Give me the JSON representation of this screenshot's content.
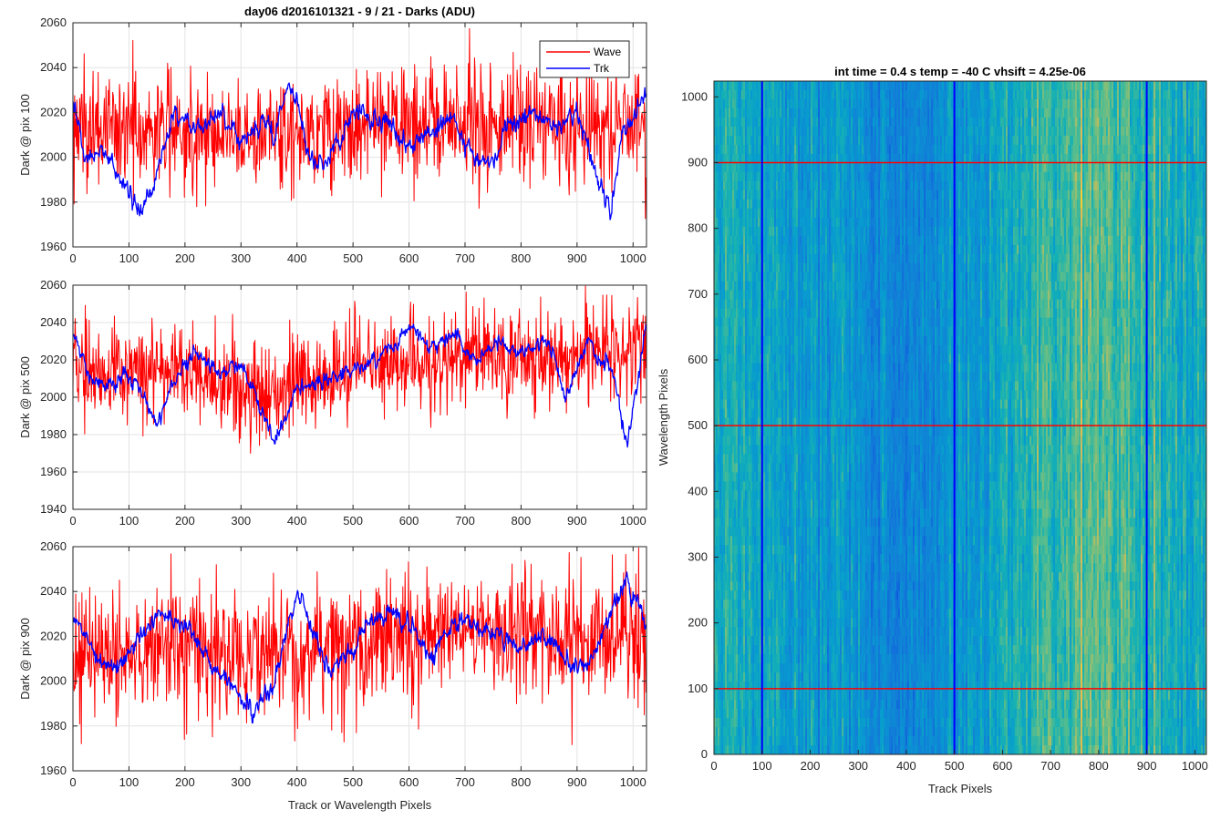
{
  "figure": {
    "title": "day06 d2016101321 - 9 / 21 - Darks (ADU)",
    "colors": {
      "wave": "#ff0000",
      "trk": "#0000ff",
      "grid": "#e3e3e3",
      "axis": "#262626"
    }
  },
  "chart_data": [
    {
      "type": "line",
      "id": "dark-pix-100",
      "title": "day06 d2016101321 - 9 / 21 - Darks (ADU)",
      "xlabel": "",
      "ylabel": "Dark @ pix 100",
      "xlim": [
        0,
        1024
      ],
      "ylim": [
        1960,
        2060
      ],
      "xticks": [
        0,
        100,
        200,
        300,
        400,
        500,
        600,
        700,
        800,
        900,
        1000
      ],
      "yticks": [
        1960,
        1980,
        2000,
        2020,
        2040,
        2060
      ],
      "grid": true,
      "legend": {
        "position": "top-right",
        "entries": [
          "Wave",
          "Trk"
        ]
      },
      "series": [
        {
          "name": "Wave",
          "color": "#ff0000",
          "mean": 2012,
          "noise": 13,
          "min": 1962,
          "max": 2057,
          "trend": [
            [
              0,
              2012
            ],
            [
              100,
              2013
            ],
            [
              200,
              2012
            ],
            [
              300,
              2010
            ],
            [
              400,
              2012
            ],
            [
              500,
              2013
            ],
            [
              600,
              2015
            ],
            [
              700,
              2016
            ],
            [
              800,
              2015
            ],
            [
              900,
              2015
            ],
            [
              1024,
              2015
            ]
          ]
        },
        {
          "name": "Trk",
          "color": "#0000ff",
          "mean": 2008,
          "noise": 4,
          "min": 1967,
          "max": 2041,
          "trend": [
            [
              0,
              2025
            ],
            [
              20,
              2000
            ],
            [
              60,
              2002
            ],
            [
              100,
              1983
            ],
            [
              120,
              1975
            ],
            [
              140,
              1985
            ],
            [
              180,
              2020
            ],
            [
              220,
              2012
            ],
            [
              260,
              2022
            ],
            [
              300,
              2008
            ],
            [
              340,
              2015
            ],
            [
              360,
              2010
            ],
            [
              380,
              2030
            ],
            [
              400,
              2027
            ],
            [
              420,
              2000
            ],
            [
              450,
              1995
            ],
            [
              500,
              2020
            ],
            [
              560,
              2015
            ],
            [
              600,
              2005
            ],
            [
              640,
              2012
            ],
            [
              680,
              2018
            ],
            [
              700,
              2005
            ],
            [
              720,
              2000
            ],
            [
              750,
              1998
            ],
            [
              780,
              2015
            ],
            [
              820,
              2020
            ],
            [
              860,
              2015
            ],
            [
              900,
              2020
            ],
            [
              930,
              1995
            ],
            [
              960,
              1975
            ],
            [
              980,
              2010
            ],
            [
              1000,
              2018
            ],
            [
              1024,
              2028
            ]
          ]
        }
      ]
    },
    {
      "type": "line",
      "id": "dark-pix-500",
      "title": "",
      "xlabel": "",
      "ylabel": "Dark @ pix 500",
      "xlim": [
        0,
        1024
      ],
      "ylim": [
        1940,
        2060
      ],
      "xticks": [
        0,
        100,
        200,
        300,
        400,
        500,
        600,
        700,
        800,
        900,
        1000
      ],
      "yticks": [
        1940,
        1960,
        1980,
        2000,
        2020,
        2040,
        2060
      ],
      "grid": true,
      "series": [
        {
          "name": "Wave",
          "color": "#ff0000",
          "mean": 2015,
          "noise": 13,
          "min": 1953,
          "max": 2053,
          "trend": [
            [
              0,
              2015
            ],
            [
              100,
              2012
            ],
            [
              200,
              2014
            ],
            [
              300,
              2005
            ],
            [
              350,
              2000
            ],
            [
              400,
              2008
            ],
            [
              500,
              2015
            ],
            [
              600,
              2020
            ],
            [
              700,
              2022
            ],
            [
              800,
              2024
            ],
            [
              900,
              2022
            ],
            [
              1024,
              2026
            ]
          ]
        },
        {
          "name": "Trk",
          "color": "#0000ff",
          "mean": 2012,
          "noise": 4,
          "min": 1971,
          "max": 2047,
          "trend": [
            [
              0,
              2035
            ],
            [
              30,
              2010
            ],
            [
              60,
              2004
            ],
            [
              100,
              2012
            ],
            [
              130,
              2000
            ],
            [
              150,
              1985
            ],
            [
              180,
              2010
            ],
            [
              220,
              2025
            ],
            [
              260,
              2012
            ],
            [
              300,
              2018
            ],
            [
              340,
              1990
            ],
            [
              360,
              1975
            ],
            [
              400,
              2005
            ],
            [
              450,
              2010
            ],
            [
              500,
              2015
            ],
            [
              560,
              2025
            ],
            [
              600,
              2038
            ],
            [
              640,
              2028
            ],
            [
              680,
              2035
            ],
            [
              720,
              2020
            ],
            [
              760,
              2030
            ],
            [
              800,
              2025
            ],
            [
              850,
              2030
            ],
            [
              880,
              2000
            ],
            [
              920,
              2030
            ],
            [
              960,
              2015
            ],
            [
              990,
              1975
            ],
            [
              1024,
              2040
            ]
          ]
        }
      ]
    },
    {
      "type": "line",
      "id": "dark-pix-900",
      "title": "",
      "xlabel": "Track or Wavelength Pixels",
      "ylabel": "Dark @ pix 900",
      "xlim": [
        0,
        1024
      ],
      "ylim": [
        1960,
        2060
      ],
      "xticks": [
        0,
        100,
        200,
        300,
        400,
        500,
        600,
        700,
        800,
        900,
        1000
      ],
      "yticks": [
        1960,
        1980,
        2000,
        2020,
        2040,
        2060
      ],
      "grid": true,
      "series": [
        {
          "name": "Wave",
          "color": "#ff0000",
          "mean": 2015,
          "noise": 14,
          "min": 1963,
          "max": 2051,
          "trend": [
            [
              0,
              2010
            ],
            [
              100,
              2012
            ],
            [
              200,
              2015
            ],
            [
              300,
              2010
            ],
            [
              400,
              2012
            ],
            [
              500,
              2018
            ],
            [
              600,
              2022
            ],
            [
              700,
              2022
            ],
            [
              800,
              2022
            ],
            [
              900,
              2020
            ],
            [
              1024,
              2022
            ]
          ]
        },
        {
          "name": "Trk",
          "color": "#0000ff",
          "mean": 2018,
          "noise": 4,
          "min": 1977,
          "max": 2060,
          "trend": [
            [
              0,
              2030
            ],
            [
              40,
              2010
            ],
            [
              80,
              2005
            ],
            [
              120,
              2020
            ],
            [
              160,
              2030
            ],
            [
              200,
              2025
            ],
            [
              240,
              2010
            ],
            [
              280,
              2000
            ],
            [
              320,
              1985
            ],
            [
              360,
              2000
            ],
            [
              400,
              2040
            ],
            [
              430,
              2020
            ],
            [
              460,
              2005
            ],
            [
              500,
              2015
            ],
            [
              520,
              2025
            ],
            [
              560,
              2030
            ],
            [
              600,
              2025
            ],
            [
              640,
              2010
            ],
            [
              680,
              2028
            ],
            [
              720,
              2025
            ],
            [
              760,
              2020
            ],
            [
              800,
              2015
            ],
            [
              840,
              2020
            ],
            [
              880,
              2010
            ],
            [
              920,
              2005
            ],
            [
              960,
              2030
            ],
            [
              990,
              2045
            ],
            [
              1024,
              2025
            ]
          ]
        }
      ]
    },
    {
      "type": "heatmap",
      "id": "dark-frame-image",
      "title": "int time = 0.4 s   temp = -40 C   vhsift = 4.25e-06",
      "xlabel": "Track Pixels",
      "ylabel": "Wavelength Pixels",
      "xlim": [
        0,
        1024
      ],
      "ylim": [
        0,
        1024
      ],
      "xticks": [
        0,
        100,
        200,
        300,
        400,
        500,
        600,
        700,
        800,
        900,
        1000
      ],
      "yticks": [
        0,
        100,
        200,
        300,
        400,
        500,
        600,
        700,
        800,
        900,
        1000
      ],
      "colormap": "parula",
      "column_profile": [
        [
          0,
          0.55
        ],
        [
          100,
          0.5
        ],
        [
          200,
          0.45
        ],
        [
          300,
          0.4
        ],
        [
          380,
          0.33
        ],
        [
          450,
          0.37
        ],
        [
          500,
          0.45
        ],
        [
          600,
          0.5
        ],
        [
          700,
          0.58
        ],
        [
          780,
          0.64
        ],
        [
          850,
          0.62
        ],
        [
          950,
          0.55
        ],
        [
          1024,
          0.5
        ]
      ],
      "marker_lines": {
        "horizontal": {
          "color": "#ff0000",
          "values": [
            100,
            500,
            900
          ]
        },
        "vertical": {
          "color": "#0000ff",
          "values": [
            100,
            500,
            900
          ]
        }
      }
    }
  ]
}
